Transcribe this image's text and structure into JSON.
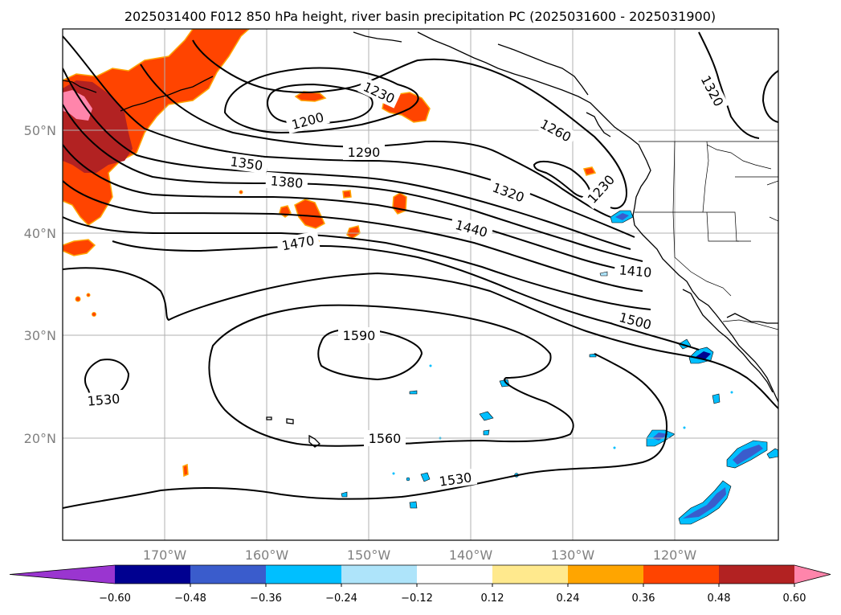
{
  "title": "2025031400 F012 850 hPa height, river basin precipitation PC (2025031600 - 2025031900)",
  "lat_labels": [
    "50°N",
    "40°N",
    "30°N",
    "20°N"
  ],
  "lon_labels": [
    "170°W",
    "160°W",
    "150°W",
    "140°W",
    "130°W",
    "120°W"
  ],
  "contour_labels": [
    "1200",
    "1230",
    "1260",
    "1320",
    "1290",
    "1350",
    "1380",
    "1320",
    "1230",
    "1440",
    "1470",
    "1410",
    "1500",
    "1590",
    "1530",
    "1560",
    "1530"
  ],
  "colorbar": {
    "colors": [
      "#9a35d0",
      "#000090",
      "#3a5ccc",
      "#00bfff",
      "#aee4fa",
      "#ffffff",
      "#ffe98d",
      "#ffa500",
      "#ff4400",
      "#b22222",
      "#ff85ab"
    ],
    "tick_labels": [
      "−0.60",
      "−0.48",
      "−0.36",
      "−0.24",
      "−0.12",
      "0.12",
      "0.24",
      "0.36",
      "0.48",
      "0.60"
    ]
  }
}
